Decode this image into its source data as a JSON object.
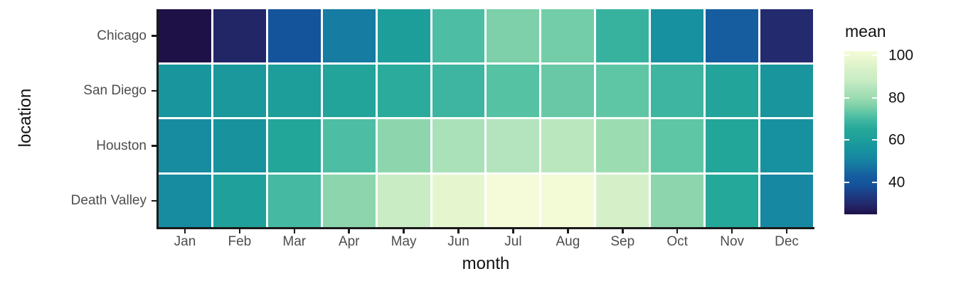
{
  "chart_data": {
    "type": "heatmap",
    "title": "",
    "xlabel": "month",
    "ylabel": "location",
    "legend_title": "mean",
    "legend_position": "right",
    "grid": false,
    "x_categories": [
      "Jan",
      "Feb",
      "Mar",
      "Apr",
      "May",
      "Jun",
      "Jul",
      "Aug",
      "Sep",
      "Oct",
      "Nov",
      "Dec"
    ],
    "y_categories": [
      "Chicago",
      "San Diego",
      "Houston",
      "Death Valley"
    ],
    "series": [
      {
        "name": "Chicago",
        "values": [
          25,
          29,
          39,
          49,
          60,
          71,
          76,
          75,
          68,
          55,
          43,
          30
        ]
      },
      {
        "name": "San Diego",
        "values": [
          57,
          58,
          60,
          63,
          66,
          69,
          72,
          74,
          73,
          69,
          63,
          57
        ]
      },
      {
        "name": "Houston",
        "values": [
          53,
          56,
          64,
          71,
          78,
          83,
          85,
          86,
          80,
          73,
          64,
          55
        ]
      },
      {
        "name": "Death Valley",
        "values": [
          53,
          61,
          70,
          78,
          88,
          97,
          102,
          101,
          93,
          78,
          65,
          52
        ]
      }
    ],
    "scale": {
      "domain": [
        25,
        102
      ],
      "legend_ticks": [
        100,
        80,
        60,
        40
      ],
      "legend_tick_labels": [
        "100",
        "80",
        "60",
        "40"
      ],
      "colormap_stops": [
        [
          25,
          "#1e1148"
        ],
        [
          30,
          "#232a6e"
        ],
        [
          35,
          "#1b3f87"
        ],
        [
          39,
          "#14549b"
        ],
        [
          43,
          "#155d9f"
        ],
        [
          50,
          "#1681a1"
        ],
        [
          54,
          "#178fa0"
        ],
        [
          57,
          "#18959d"
        ],
        [
          60,
          "#1e9e9b"
        ],
        [
          65,
          "#24a89a"
        ],
        [
          69,
          "#3db5a0"
        ],
        [
          72,
          "#55c2a4"
        ],
        [
          76,
          "#7dd0a9"
        ],
        [
          80,
          "#9cdcb1"
        ],
        [
          85,
          "#b4e4bd"
        ],
        [
          88,
          "#c9ecc4"
        ],
        [
          93,
          "#d5f0c9"
        ],
        [
          97,
          "#e5f6ce"
        ],
        [
          102,
          "#f5fbd8"
        ]
      ]
    }
  },
  "colors": {
    "background": "#ffffff",
    "axis_line": "#1a1a1a",
    "tick_label": "#4d4d4d",
    "title_text": "#111111",
    "tile_border": "#ffffff"
  }
}
